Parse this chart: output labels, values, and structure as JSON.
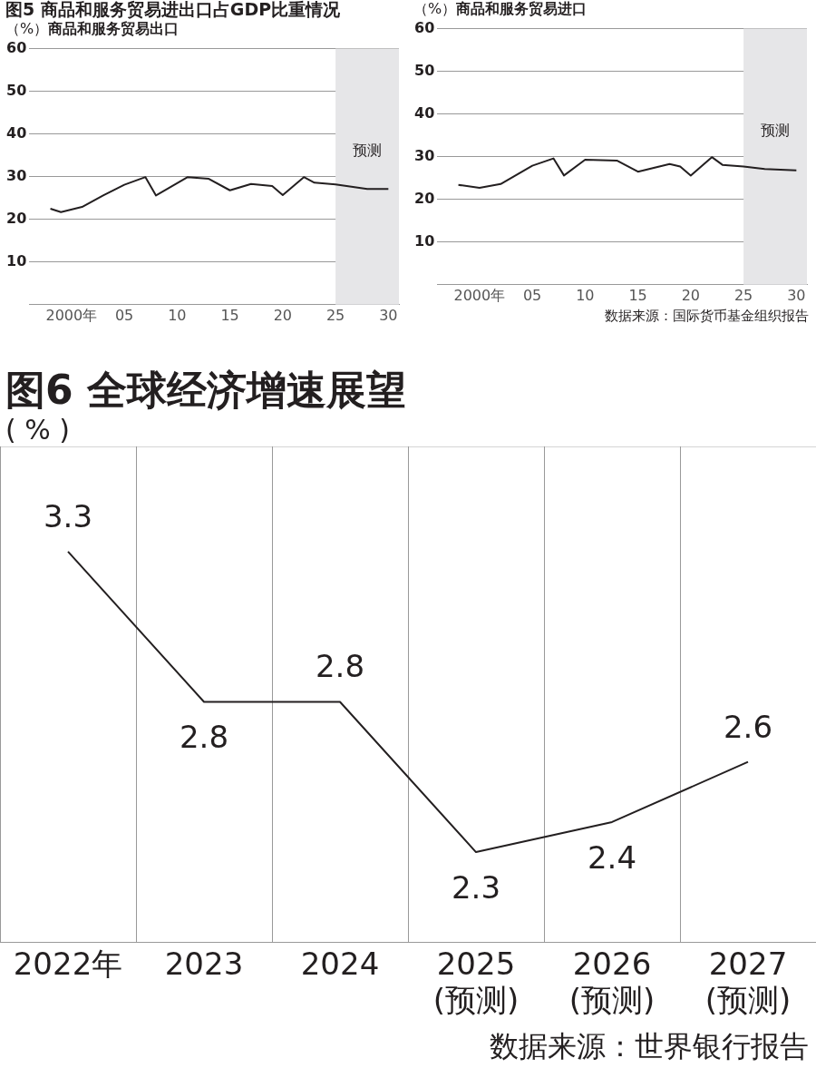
{
  "chart_data": [
    {
      "type": "line",
      "title": "图5 商品和服务贸易进出口占GDP比重情况",
      "subtitle": "商品和服务贸易出口",
      "ylabel": "（%）",
      "color": "#231f20",
      "marker": "none",
      "grid": "y",
      "x": [
        1998,
        1999,
        2001,
        2003,
        2005,
        2007,
        2008,
        2011,
        2013,
        2015,
        2017,
        2019,
        2020,
        2022,
        2023,
        2025,
        2028,
        2030
      ],
      "values": [
        22.5,
        21.7,
        22.9,
        25.6,
        28.1,
        29.9,
        25.6,
        29.9,
        29.5,
        26.8,
        28.3,
        27.8,
        25.7,
        29.9,
        28.6,
        28.2,
        27.1,
        27.1
      ],
      "xlim": [
        1996,
        2031
      ],
      "xticks": [
        {
          "value": 2000,
          "label": "2000年"
        },
        {
          "value": 2005,
          "label": "05"
        },
        {
          "value": 2010,
          "label": "10"
        },
        {
          "value": 2015,
          "label": "15"
        },
        {
          "value": 2020,
          "label": "20"
        },
        {
          "value": 2025,
          "label": "25"
        },
        {
          "value": 2030,
          "label": "30"
        }
      ],
      "ylim": [
        0,
        60
      ],
      "yticks": [
        10,
        20,
        30,
        40,
        50,
        60
      ],
      "bands": [
        {
          "axis": "x",
          "from": 2025,
          "to": 2031,
          "label": "预测",
          "color": "#e6e6e8"
        }
      ]
    },
    {
      "type": "line",
      "subtitle": "商品和服务贸易进口",
      "ylabel": "（%）",
      "color": "#231f20",
      "marker": "none",
      "grid": "y",
      "x": [
        1998,
        2000,
        2002,
        2005,
        2007,
        2008,
        2010,
        2013,
        2015,
        2018,
        2019,
        2020,
        2022,
        2023,
        2025,
        2027,
        2030
      ],
      "values": [
        23.4,
        22.7,
        23.6,
        27.9,
        29.6,
        25.6,
        29.3,
        29.1,
        26.5,
        28.3,
        27.7,
        25.6,
        29.9,
        28.1,
        27.7,
        27.1,
        26.8
      ],
      "xlim": [
        1996,
        2031
      ],
      "xticks": [
        {
          "value": 2000,
          "label": "2000年"
        },
        {
          "value": 2005,
          "label": "05"
        },
        {
          "value": 2010,
          "label": "10"
        },
        {
          "value": 2015,
          "label": "15"
        },
        {
          "value": 2020,
          "label": "20"
        },
        {
          "value": 2025,
          "label": "25"
        },
        {
          "value": 2030,
          "label": "30"
        }
      ],
      "ylim": [
        0,
        60
      ],
      "yticks": [
        10,
        20,
        30,
        40,
        50,
        60
      ],
      "bands": [
        {
          "axis": "x",
          "from": 2025,
          "to": 2031,
          "label": "预测",
          "color": "#e6e6e8"
        }
      ],
      "annotations": [
        "数据来源：国际货币基金组织报告"
      ]
    },
    {
      "type": "line",
      "title": "图6 全球经济增速展望",
      "ylabel": "( % )",
      "color": "#231f20",
      "marker": "none",
      "grid": "x",
      "data_labels": true,
      "tick_labels": "x",
      "categories": [
        "2022年",
        "2023",
        "2024",
        "2025\n(预测)",
        "2026\n(预测)",
        "2027\n(预测)"
      ],
      "values": [
        3.3,
        2.8,
        2.8,
        2.3,
        2.4,
        2.6
      ],
      "ylim": [
        2,
        3.65
      ],
      "annotations": [
        "数据来源：世界银行报告"
      ]
    }
  ]
}
